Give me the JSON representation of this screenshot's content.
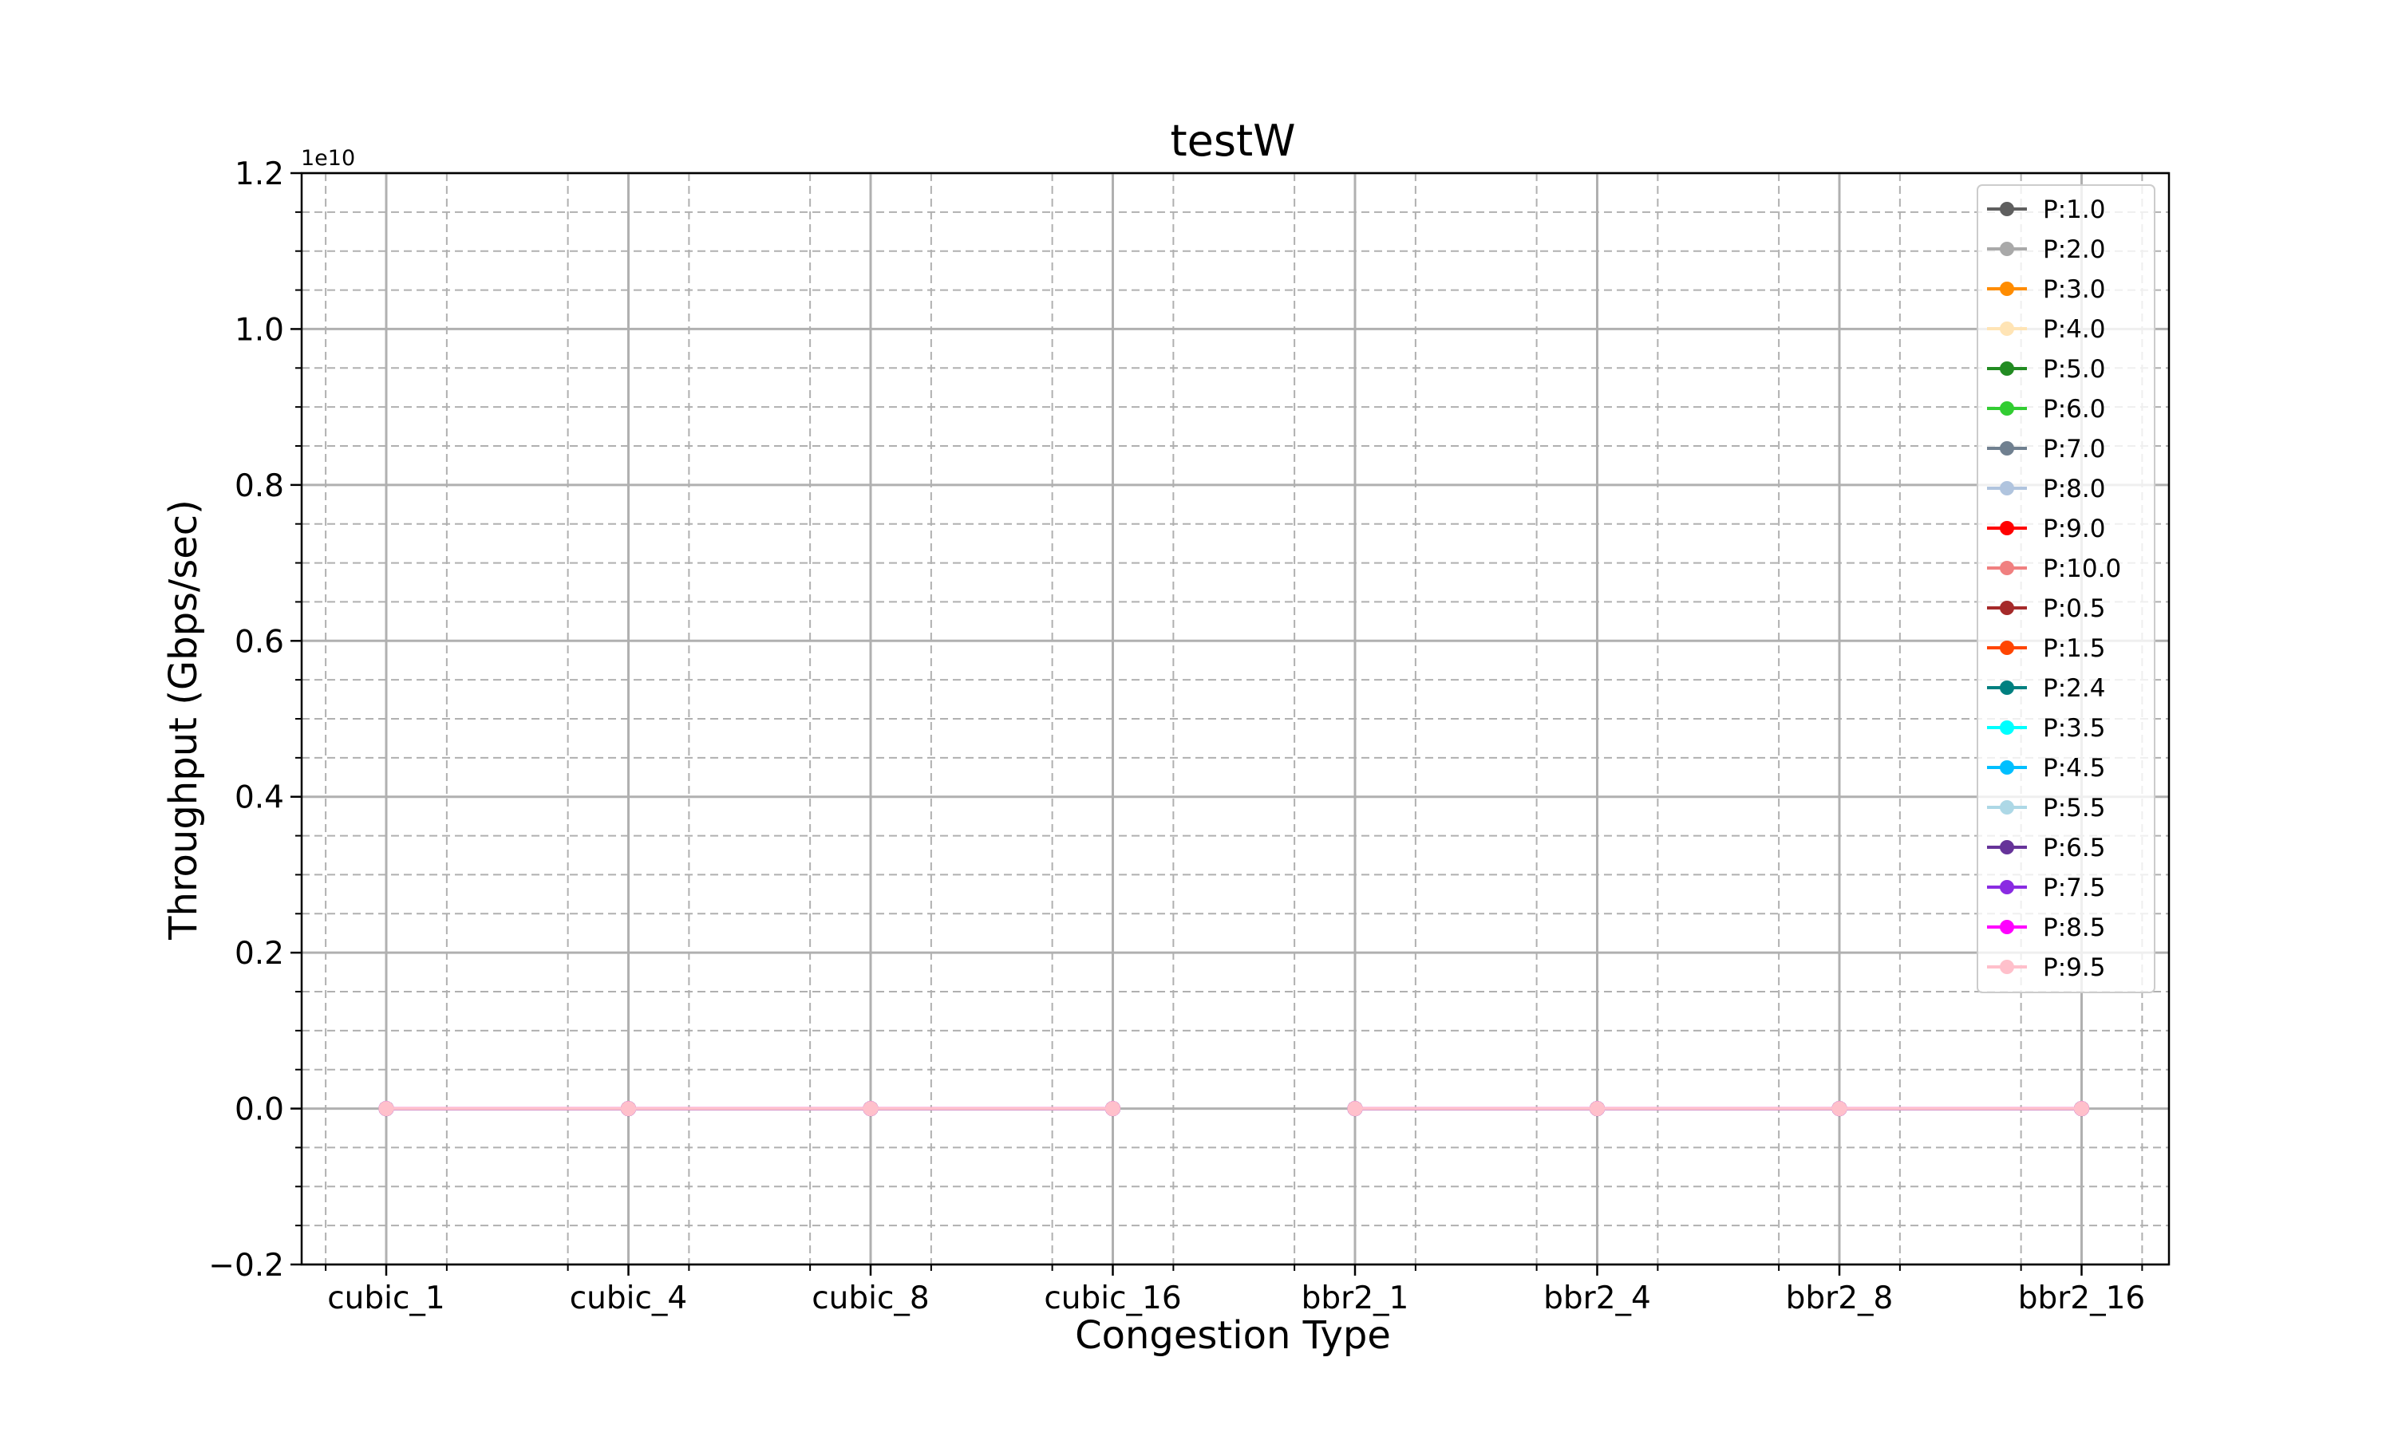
{
  "chart_data": {
    "type": "line",
    "title": "testW",
    "xlabel": "Congestion Type",
    "ylabel": "Throughput (Gbps/sec)",
    "y_offset_label": "1e10",
    "categories": [
      "cubic_1",
      "cubic_4",
      "cubic_8",
      "cubic_16",
      "bbr2_1",
      "bbr2_4",
      "bbr2_8",
      "bbr2_16"
    ],
    "ylim": [
      -0.2,
      1.2
    ],
    "yticks": [
      "−0.2",
      "0.0",
      "0.2",
      "0.4",
      "0.6",
      "0.8",
      "1.0",
      "1.2"
    ],
    "grid": true,
    "legend_position": "top-right",
    "gap_between": [
      "cubic_16",
      "bbr2_1"
    ],
    "series": [
      {
        "name": "P:1.0",
        "color": "#5f5f5f",
        "values": [
          0,
          0,
          0,
          0,
          0,
          0,
          0,
          0
        ]
      },
      {
        "name": "P:2.0",
        "color": "#a9a9a9",
        "values": [
          0,
          0,
          0,
          0,
          0,
          0,
          0,
          0
        ]
      },
      {
        "name": "P:3.0",
        "color": "#ff8c00",
        "values": [
          0,
          0,
          0,
          0,
          0,
          0,
          0,
          0
        ]
      },
      {
        "name": "P:4.0",
        "color": "#ffe4b5",
        "values": [
          0,
          0,
          0,
          0,
          0,
          0,
          0,
          0
        ]
      },
      {
        "name": "P:5.0",
        "color": "#228b22",
        "values": [
          0,
          0,
          0,
          0,
          0,
          0,
          0,
          0
        ]
      },
      {
        "name": "P:6.0",
        "color": "#32cd32",
        "values": [
          0,
          0,
          0,
          0,
          0,
          0,
          0,
          0
        ]
      },
      {
        "name": "P:7.0",
        "color": "#708090",
        "values": [
          0,
          0,
          0,
          0,
          0,
          0,
          0,
          0
        ]
      },
      {
        "name": "P:8.0",
        "color": "#b0c4de",
        "values": [
          0,
          0,
          0,
          0,
          0,
          0,
          0,
          0
        ]
      },
      {
        "name": "P:9.0",
        "color": "#ff0000",
        "values": [
          0,
          0,
          0,
          0,
          0,
          0,
          0,
          0
        ]
      },
      {
        "name": "P:10.0",
        "color": "#f08080",
        "values": [
          0,
          0,
          0,
          0,
          0,
          0,
          0,
          0
        ]
      },
      {
        "name": "P:0.5",
        "color": "#a52a2a",
        "values": [
          0,
          0,
          0,
          0,
          0,
          0,
          0,
          0
        ]
      },
      {
        "name": "P:1.5",
        "color": "#ff4500",
        "values": [
          0,
          0,
          0,
          0,
          0,
          0,
          0,
          0
        ]
      },
      {
        "name": "P:2.4",
        "color": "#008080",
        "values": [
          0,
          0,
          0,
          0,
          0,
          0,
          0,
          0
        ]
      },
      {
        "name": "P:3.5",
        "color": "#00ffff",
        "values": [
          0,
          0,
          0,
          0,
          0,
          0,
          0,
          0
        ]
      },
      {
        "name": "P:4.5",
        "color": "#00bfff",
        "values": [
          0,
          0,
          0,
          0,
          0,
          0,
          0,
          0
        ]
      },
      {
        "name": "P:5.5",
        "color": "#add8e6",
        "values": [
          0,
          0,
          0,
          0,
          0,
          0,
          0,
          0
        ]
      },
      {
        "name": "P:6.5",
        "color": "#663399",
        "values": [
          0,
          0,
          0,
          0,
          0,
          0,
          0,
          0
        ]
      },
      {
        "name": "P:7.5",
        "color": "#8a2be2",
        "values": [
          0,
          0,
          0,
          0,
          0,
          0,
          0,
          0
        ]
      },
      {
        "name": "P:8.5",
        "color": "#ff00ff",
        "values": [
          0,
          0,
          0,
          0,
          0,
          0,
          0,
          0
        ]
      },
      {
        "name": "P:9.5",
        "color": "#ffc0cb",
        "values": [
          0,
          0,
          0,
          0,
          0,
          0,
          0,
          0
        ]
      }
    ]
  }
}
